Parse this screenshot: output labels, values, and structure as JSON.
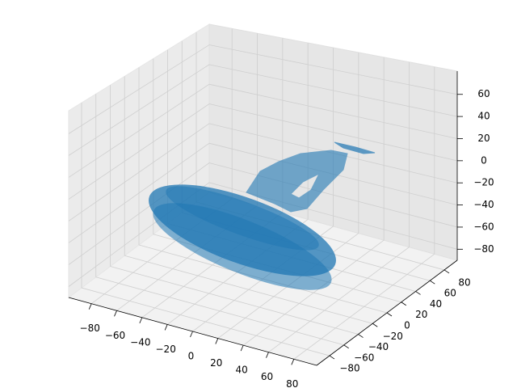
{
  "chart_data": {
    "type": "surface3d",
    "color": "#1f77b4",
    "grid": true,
    "xlim": [
      -98,
      98
    ],
    "ylim": [
      -98,
      98
    ],
    "zlim": [
      -90,
      81
    ],
    "xticks": [
      {
        "value": -80,
        "label": "−80"
      },
      {
        "value": -60,
        "label": "−60"
      },
      {
        "value": -40,
        "label": "−40"
      },
      {
        "value": -20,
        "label": "−20"
      },
      0,
      20,
      40,
      60,
      80
    ],
    "yticks": [
      {
        "value": -80,
        "label": "−80"
      },
      {
        "value": -60,
        "label": "−60"
      },
      {
        "value": -40,
        "label": "−40"
      },
      {
        "value": -20,
        "label": "−20"
      },
      0,
      20,
      40,
      60,
      80
    ],
    "zticks": [
      {
        "value": -80,
        "label": "−80"
      },
      {
        "value": -60,
        "label": "−60"
      },
      {
        "value": -40,
        "label": "−40"
      },
      {
        "value": -20,
        "label": "−20"
      },
      0,
      20,
      40,
      60
    ]
  }
}
